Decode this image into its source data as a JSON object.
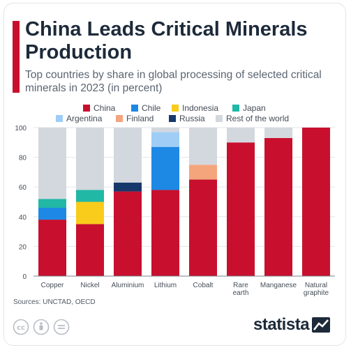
{
  "header": {
    "title": "China Leads Critical Minerals Production",
    "subtitle": "Top countries by share in global processing of selected critical minerals in 2023 (in percent)"
  },
  "chart_data": {
    "type": "bar",
    "stacked": true,
    "categories": [
      "Copper",
      "Nickel",
      "Aluminium",
      "Lithium",
      "Cobalt",
      "Rare earth",
      "Manganese",
      "Natural graphite"
    ],
    "series": [
      {
        "name": "China",
        "color": "#c8102e",
        "values": [
          38,
          35,
          57,
          58,
          65,
          90,
          93,
          100
        ]
      },
      {
        "name": "Chile",
        "color": "#1e88e5",
        "values": [
          8,
          0,
          0,
          29,
          0,
          0,
          0,
          0
        ]
      },
      {
        "name": "Indonesia",
        "color": "#f9cc1c",
        "values": [
          0,
          15,
          0,
          0,
          0,
          0,
          0,
          0
        ]
      },
      {
        "name": "Japan",
        "color": "#21b8a6",
        "values": [
          6,
          8,
          0,
          0,
          0,
          0,
          0,
          0
        ]
      },
      {
        "name": "Argentina",
        "color": "#9fcdf6",
        "values": [
          0,
          0,
          0,
          10,
          0,
          0,
          0,
          0
        ]
      },
      {
        "name": "Finland",
        "color": "#f4a57c",
        "values": [
          0,
          0,
          0,
          0,
          10,
          0,
          0,
          0
        ]
      },
      {
        "name": "Russia",
        "color": "#16386b",
        "values": [
          0,
          0,
          6,
          0,
          0,
          0,
          0,
          0
        ]
      },
      {
        "name": "Rest of the world",
        "color": "#d3d8de",
        "values": [
          48,
          42,
          37,
          3,
          25,
          10,
          7,
          0
        ]
      }
    ],
    "ylim": [
      0,
      100
    ],
    "yticks": [
      0,
      20,
      40,
      60,
      80,
      100
    ],
    "grid": true,
    "legend": "top"
  },
  "footer": {
    "sources": "Sources: UNCTAD, OECD",
    "brand": "statista",
    "license_icons": [
      "creative-commons-icon",
      "attribution-icon",
      "no-derivatives-icon"
    ]
  }
}
